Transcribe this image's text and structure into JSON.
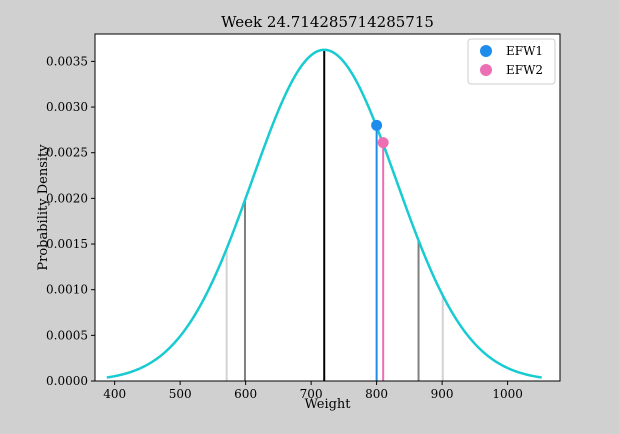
{
  "chart_data": {
    "type": "line",
    "title": "Week 24.714285714285715",
    "xlabel": "Weight",
    "ylabel": "Probability Density",
    "xlim": [
      370,
      1080
    ],
    "ylim": [
      0,
      0.0038
    ],
    "grid": false,
    "legend_position": "top-right",
    "x_ticks": [
      400,
      500,
      600,
      700,
      800,
      900,
      1000
    ],
    "y_ticks": [
      0.0,
      0.0005,
      0.001,
      0.0015,
      0.002,
      0.0025,
      0.003,
      0.0035
    ],
    "x_tick_labels": [
      "400",
      "500",
      "600",
      "700",
      "800",
      "900",
      "1000"
    ],
    "y_tick_labels": [
      "0.0000",
      "0.0005",
      "0.0010",
      "0.0015",
      "0.0020",
      "0.0025",
      "0.0030",
      "0.0035"
    ],
    "curve": {
      "distribution": "normal",
      "mean": 720,
      "sd": 110,
      "x_range": [
        388,
        1052
      ],
      "color": "#17cbd0"
    },
    "vertical_lines": [
      {
        "x": 571,
        "color": "#d3d3d3"
      },
      {
        "x": 599,
        "color": "#808080"
      },
      {
        "x": 720,
        "color": "#000000"
      },
      {
        "x": 800,
        "color": "#1e8ceb"
      },
      {
        "x": 810,
        "color": "#ec6fb4"
      },
      {
        "x": 864,
        "color": "#808080"
      },
      {
        "x": 901,
        "color": "#d3d3d3"
      }
    ],
    "series": [
      {
        "name": "EFW1",
        "x": 800,
        "y": 0.0028,
        "color": "#1e8ceb"
      },
      {
        "name": "EFW2",
        "x": 810,
        "y": 0.00261,
        "color": "#ec6fb4"
      }
    ]
  }
}
